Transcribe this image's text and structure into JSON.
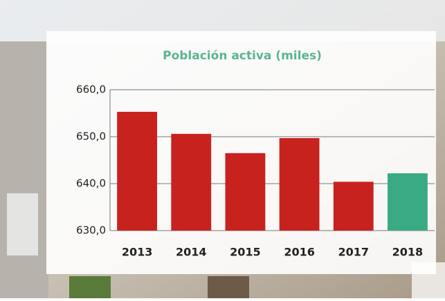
{
  "chart_data": {
    "type": "bar",
    "title": "Población activa (miles)",
    "categories": [
      "2013",
      "2014",
      "2015",
      "2016",
      "2017",
      "2018"
    ],
    "values": [
      655.3,
      650.6,
      646.5,
      649.7,
      640.4,
      642.2
    ],
    "colors": [
      "#c8221f",
      "#c8221f",
      "#c8221f",
      "#c8221f",
      "#c8221f",
      "#3aaa85"
    ],
    "ylim": [
      630,
      660
    ],
    "yticks": [
      {
        "value": 630,
        "label": "630,0"
      },
      {
        "value": 640,
        "label": "640,0"
      },
      {
        "value": 650,
        "label": "650,0"
      },
      {
        "value": 660,
        "label": "660,0"
      }
    ],
    "grid": true
  }
}
